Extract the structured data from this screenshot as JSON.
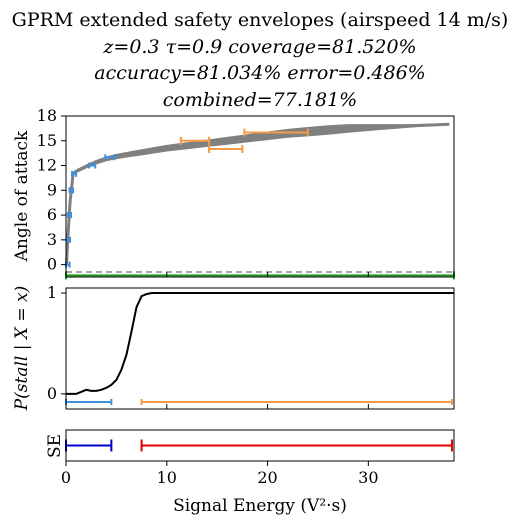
{
  "title": {
    "line1": "GPRM extended safety envelopes (airspeed 14 m/s)",
    "line2": "z=0.3 τ=0.9 coverage=81.520%",
    "line3": "accuracy=81.034% error=0.486%",
    "line4": "combined=77.181%"
  },
  "colors": {
    "band": "#808080",
    "blue": "#3d8fe0",
    "orange": "#f79a45",
    "green": "#1a9c1a",
    "dashed": "#a6a6a6",
    "se_blue": "#0000cc",
    "se_red": "#e00000",
    "curve": "#000000"
  },
  "chart_data": [
    {
      "type": "area",
      "ylabel": "Angle of attack",
      "xlim": [
        0,
        38.5
      ],
      "ylim": [
        -1.5,
        18
      ],
      "yticks": [
        "0",
        "3",
        "6",
        "9",
        "12",
        "15",
        "18"
      ],
      "band": {
        "x": [
          0.05,
          0.2,
          0.4,
          0.7,
          1.0,
          2.0,
          3.0,
          4.0,
          5.0,
          6.0,
          8.0,
          10.0,
          12.0,
          14.0,
          16.0,
          18.0,
          20.0,
          22.0,
          24.0,
          26.0,
          28.0,
          30.0,
          32.0,
          34.0,
          36.0,
          38.0
        ],
        "center": [
          0.0,
          3.5,
          7.5,
          11.0,
          11.3,
          11.9,
          12.4,
          12.8,
          13.1,
          13.3,
          13.7,
          14.1,
          14.4,
          14.7,
          15.0,
          15.3,
          15.6,
          15.9,
          16.1,
          16.3,
          16.5,
          16.6,
          16.7,
          16.8,
          16.9,
          17.0
        ],
        "halfwidth": [
          0.1,
          0.1,
          0.12,
          0.15,
          0.15,
          0.17,
          0.2,
          0.22,
          0.25,
          0.27,
          0.3,
          0.33,
          0.35,
          0.37,
          0.4,
          0.42,
          0.45,
          0.47,
          0.5,
          0.5,
          0.45,
          0.35,
          0.25,
          0.15,
          0.08,
          0.03
        ]
      },
      "blue_intervals": [
        {
          "y": 0.0,
          "x0": 0.0,
          "x1": 0.35
        },
        {
          "y": 3.0,
          "x0": 0.1,
          "x1": 0.4
        },
        {
          "y": 6.0,
          "x0": 0.2,
          "x1": 0.5
        },
        {
          "y": 9.0,
          "x0": 0.35,
          "x1": 0.7
        },
        {
          "y": 11.0,
          "x0": 0.6,
          "x1": 1.0
        },
        {
          "y": 12.0,
          "x0": 2.3,
          "x1": 2.9
        },
        {
          "y": 13.0,
          "x0": 3.9,
          "x1": 4.8
        }
      ],
      "orange_intervals": [
        {
          "y": 15.0,
          "x0": 11.4,
          "x1": 14.2
        },
        {
          "y": 14.0,
          "x0": 14.2,
          "x1": 17.5
        },
        {
          "y": 16.0,
          "x0": 17.7,
          "x1": 24.0
        }
      ],
      "dashed_y": -0.9,
      "green_line": {
        "y": -1.3,
        "x0": 0.0,
        "x1": 38.5
      }
    },
    {
      "type": "line",
      "ylabel": "P(stall | X = x)",
      "xlim": [
        0,
        38.5
      ],
      "ylim": [
        -0.15,
        1.05
      ],
      "yticks": [
        "0",
        "1"
      ],
      "x": [
        0,
        0.5,
        1.0,
        1.5,
        2.0,
        2.5,
        3.0,
        3.5,
        4.0,
        4.5,
        5.0,
        5.5,
        6.0,
        6.5,
        7.0,
        7.5,
        8.0,
        8.5,
        9.0,
        10.0,
        15.0,
        20.0,
        25.0,
        30.0,
        35.0,
        38.5
      ],
      "y": [
        0.0,
        0.0,
        0.0,
        0.02,
        0.04,
        0.03,
        0.03,
        0.04,
        0.06,
        0.09,
        0.14,
        0.24,
        0.39,
        0.62,
        0.86,
        0.97,
        0.99,
        1.0,
        1.0,
        1.0,
        1.0,
        1.0,
        1.0,
        1.0,
        1.0,
        1.0
      ],
      "blue_interval": {
        "y": -0.08,
        "x0": 0.0,
        "x1": 4.5
      },
      "orange_interval": {
        "y": -0.08,
        "x0": 7.5,
        "x1": 38.3
      }
    },
    {
      "type": "line",
      "ylabel": "SE",
      "xlabel": "Signal Energy (V²·s)",
      "xlim": [
        0,
        38.5
      ],
      "xticks": [
        "0",
        "10",
        "20",
        "30"
      ],
      "blue_interval": {
        "x0": 0.0,
        "x1": 4.5
      },
      "red_interval": {
        "x0": 7.5,
        "x1": 38.3
      }
    }
  ]
}
